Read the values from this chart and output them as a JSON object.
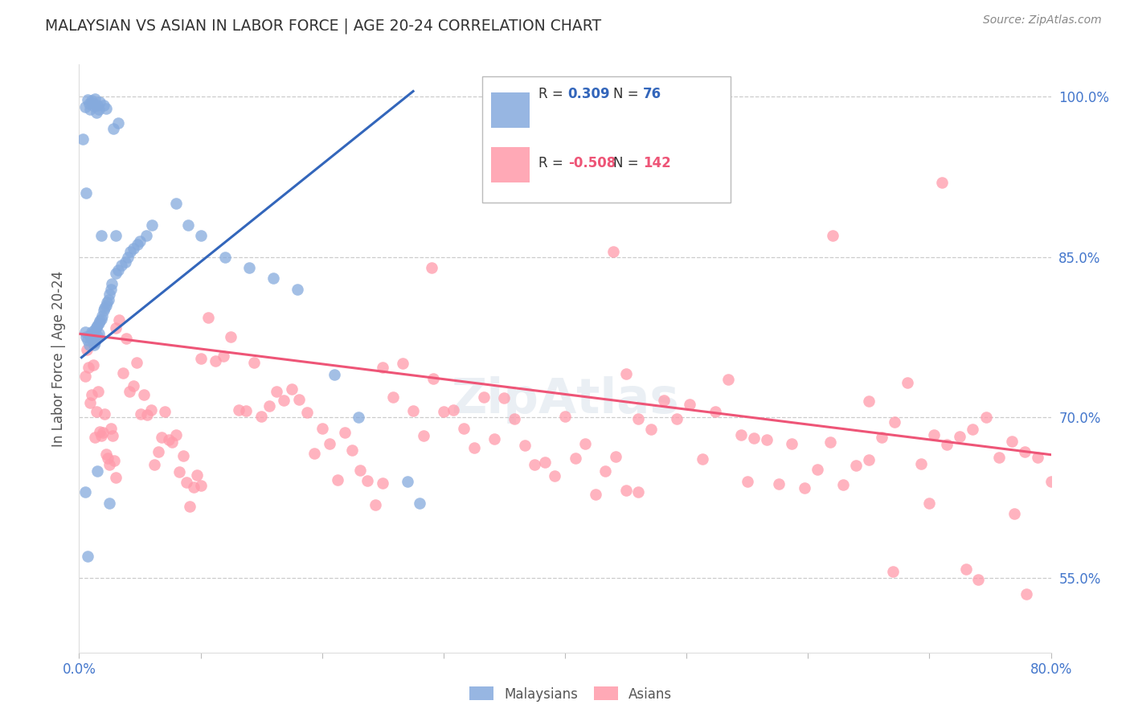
{
  "title": "MALAYSIAN VS ASIAN IN LABOR FORCE | AGE 20-24 CORRELATION CHART",
  "source": "Source: ZipAtlas.com",
  "ylabel": "In Labor Force | Age 20-24",
  "x_min": 0.0,
  "x_max": 0.8,
  "y_min": 0.48,
  "y_max": 1.03,
  "x_tick_pos": [
    0.0,
    0.1,
    0.2,
    0.3,
    0.4,
    0.5,
    0.6,
    0.7,
    0.8
  ],
  "x_tick_labels": [
    "0.0%",
    "",
    "",
    "",
    "",
    "",
    "",
    "",
    "80.0%"
  ],
  "y_ticks": [
    0.55,
    0.7,
    0.85,
    1.0
  ],
  "y_tick_labels": [
    "55.0%",
    "70.0%",
    "85.0%",
    "100.0%"
  ],
  "blue_R": "0.309",
  "blue_N": "76",
  "pink_R": "-0.508",
  "pink_N": "142",
  "blue_color": "#85AADD",
  "pink_color": "#FF9AAA",
  "blue_line_color": "#3366BB",
  "pink_line_color": "#EE5577",
  "grid_color": "#CCCCCC",
  "title_color": "#333333",
  "axis_tick_color": "#4477CC",
  "watermark": "ZipAtlas",
  "blue_line_x0": 0.002,
  "blue_line_y0": 0.756,
  "blue_line_x1": 0.275,
  "blue_line_y1": 1.005,
  "pink_line_x0": 0.001,
  "pink_line_y0": 0.778,
  "pink_line_x1": 0.8,
  "pink_line_y1": 0.665
}
